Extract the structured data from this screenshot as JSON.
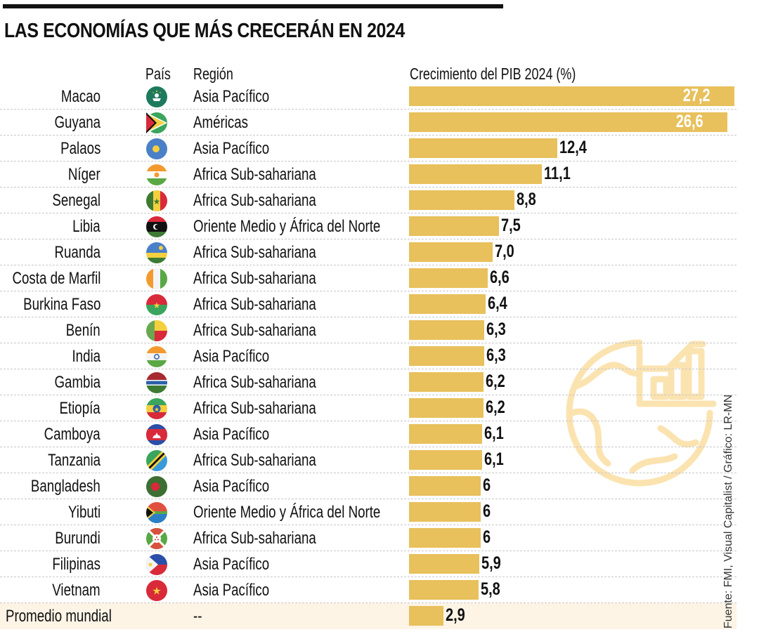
{
  "header": {
    "title": "LAS ECONOMÍAS QUE MÁS CRECERÁN EN 2024",
    "col_country": "País",
    "col_region": "Región",
    "col_growth": "Crecimiento del PIB 2024 (%)"
  },
  "source": "Fuente: FMI, Visual Capitalist / Gráfico: LR-MN",
  "colors": {
    "bar": "#e8c05c",
    "highlight_row": "#fdf4e6",
    "globe_icon": "#fbe3b0"
  },
  "chart_data": {
    "type": "bar",
    "orientation": "horizontal",
    "title": "LAS ECONOMÍAS QUE MÁS CRECERÁN EN 2024",
    "xlabel": "Crecimiento del PIB 2024 (%)",
    "ylabel": "País",
    "xlim": [
      0,
      27.2
    ],
    "grid": false,
    "legend": "none",
    "categories": [
      "Macao",
      "Guyana",
      "Palaos",
      "Níger",
      "Senegal",
      "Libia",
      "Ruanda",
      "Costa de Marfil",
      "Burkina Faso",
      "Benín",
      "India",
      "Gambia",
      "Etiopía",
      "Camboya",
      "Tanzania",
      "Bangladesh",
      "Yibuti",
      "Burundi",
      "Filipinas",
      "Vietnam",
      "Promedio mundial"
    ],
    "values": [
      27.2,
      26.6,
      12.4,
      11.1,
      8.8,
      7.5,
      7.0,
      6.6,
      6.4,
      6.3,
      6.3,
      6.2,
      6.2,
      6.1,
      6.1,
      6.0,
      6.0,
      6.0,
      5.9,
      5.8,
      2.9
    ],
    "labels": [
      "27,2",
      "26,6",
      "12,4",
      "11,1",
      "8,8",
      "7,5",
      "7,0",
      "6,6",
      "6,4",
      "6,3",
      "6,3",
      "6,2",
      "6,2",
      "6,1",
      "6,1",
      "6",
      "6",
      "6",
      "5,9",
      "5,8",
      "2,9"
    ],
    "regions": [
      "Asia Pacífico",
      "Américas",
      "Asia Pacífico",
      "Africa Sub-sahariana",
      "Africa Sub-sahariana",
      "Oriente Medio y África del Norte",
      "Africa Sub-sahariana",
      "Africa Sub-sahariana",
      "Africa Sub-sahariana",
      "Africa Sub-sahariana",
      "Asia Pacífico",
      "Africa Sub-sahariana",
      "Africa Sub-sahariana",
      "Asia Pacífico",
      "Africa Sub-sahariana",
      "Asia Pacífico",
      "Oriente Medio y África del Norte",
      "Africa Sub-sahariana",
      "Asia Pacífico",
      "Asia Pacífico",
      "--"
    ],
    "flags": [
      "macao-flag-icon",
      "guyana-flag-icon",
      "palau-flag-icon",
      "niger-flag-icon",
      "senegal-flag-icon",
      "libya-flag-icon",
      "rwanda-flag-icon",
      "ivory-coast-flag-icon",
      "burkina-faso-flag-icon",
      "benin-flag-icon",
      "india-flag-icon",
      "gambia-flag-icon",
      "ethiopia-flag-icon",
      "cambodia-flag-icon",
      "tanzania-flag-icon",
      "bangladesh-flag-icon",
      "djibouti-flag-icon",
      "burundi-flag-icon",
      "philippines-flag-icon",
      "vietnam-flag-icon",
      ""
    ]
  }
}
